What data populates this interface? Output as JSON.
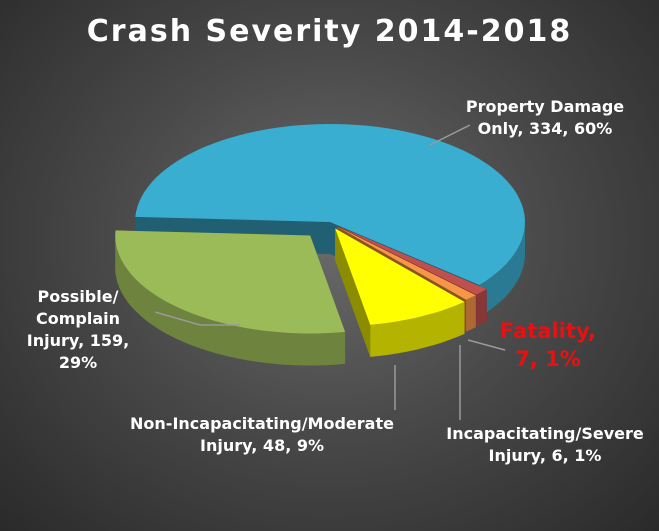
{
  "chart_data": {
    "type": "pie3d",
    "title": "Crash Severity 2014-2018",
    "values": [
      334,
      7,
      6,
      48,
      159
    ],
    "value_labels": [
      "Property Damage Only, 334, 60%",
      "Fatality, 7, 1%",
      "Incapacitating/Severe Injury, 6, 1%",
      "Non-Incapacitating/Moderate Injury, 48, 9%",
      "Possible/ Complain Injury, 159, 29%"
    ],
    "colors": [
      "#3aaed0",
      "#c0504d",
      "#f79646",
      "#ffff00",
      "#9bbb59"
    ]
  }
}
